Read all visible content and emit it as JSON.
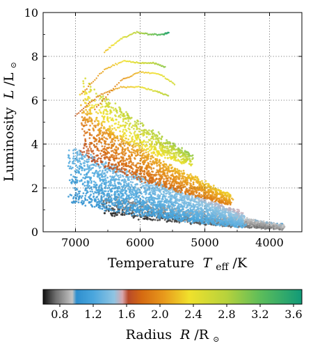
{
  "chart_data": {
    "type": "scatter",
    "title": "",
    "xlabel": "Temperature",
    "xlabel_symbol": "T",
    "xlabel_sub": "eff",
    "xlabel_unit": "/K",
    "ylabel": "Luminosity",
    "ylabel_symbol": "L",
    "ylabel_unit": "/L",
    "ylabel_sun": "⊙",
    "x_axis_inverted": true,
    "xlim": [
      7500,
      3500
    ],
    "ylim": [
      0,
      10
    ],
    "xticks": [
      7000,
      6000,
      5000,
      4000
    ],
    "xtick_labels": [
      "7000",
      "6000",
      "5000",
      "4000"
    ],
    "yticks": [
      0,
      2,
      4,
      6,
      8,
      10
    ],
    "ytick_labels": [
      "0",
      "2",
      "4",
      "6",
      "8",
      "10"
    ],
    "grid": true,
    "grid_style": "dotted",
    "color_encoding": "radius",
    "colorbar": {
      "label": "Radius",
      "label_symbol": "R",
      "label_unit": "/R",
      "label_sun": "⊙",
      "range": [
        0.6,
        3.7
      ],
      "ticks": [
        0.8,
        1.2,
        1.6,
        2.0,
        2.4,
        2.8,
        3.2,
        3.6
      ],
      "tick_labels": [
        "0.8",
        "1.2",
        "1.6",
        "2.0",
        "2.4",
        "2.8",
        "3.2",
        "3.6"
      ],
      "colormap": [
        {
          "r": 0.6,
          "color": "#111111"
        },
        {
          "r": 0.75,
          "color": "#6e6e6e"
        },
        {
          "r": 0.95,
          "color": "#c4c4c4"
        },
        {
          "r": 1.0,
          "color": "#2f8fce"
        },
        {
          "r": 1.2,
          "color": "#4aa6dd"
        },
        {
          "r": 1.45,
          "color": "#8fc4e2"
        },
        {
          "r": 1.55,
          "color": "#d8a7ad"
        },
        {
          "r": 1.62,
          "color": "#b84a2a"
        },
        {
          "r": 1.78,
          "color": "#d56a12"
        },
        {
          "r": 2.05,
          "color": "#e89a1c"
        },
        {
          "r": 2.35,
          "color": "#f0e12c"
        },
        {
          "r": 2.8,
          "color": "#b6d23c"
        },
        {
          "r": 3.2,
          "color": "#5dbd5a"
        },
        {
          "r": 3.7,
          "color": "#119a78"
        }
      ]
    },
    "point_cloud": {
      "description_bands": [
        {
          "name": "lower-main-sequence",
          "t_hot": 6600,
          "t_cool": 3800,
          "l_low_hot": 0.8,
          "l_low_cool": 0.1,
          "thickness": 1.0,
          "r_min": 0.6,
          "r_max": 1.0
        },
        {
          "name": "main-sequence",
          "t_hot": 7100,
          "t_cool": 4400,
          "l_low_hot": 1.4,
          "l_low_cool": 0.2,
          "thickness": 2.6,
          "r_min": 1.0,
          "r_max": 1.55
        },
        {
          "name": "subgiant",
          "t_hot": 6900,
          "t_cool": 4600,
          "l_low_hot": 3.6,
          "l_low_cool": 1.2,
          "thickness": 2.0,
          "r_min": 1.6,
          "r_max": 2.3
        },
        {
          "name": "evolved-tracks",
          "t_hot": 6900,
          "t_cool": 5200,
          "l_low_hot": 5.2,
          "l_low_cool": 3.0,
          "thickness": 2.0,
          "r_min": 2.0,
          "r_max": 3.0
        }
      ],
      "tracks": [
        {
          "t": [
            6550,
            6300,
            6050,
            5850,
            5650,
            5550
          ],
          "l": [
            8.2,
            8.8,
            9.1,
            9.0,
            9.0,
            9.1
          ],
          "r_start": 2.2,
          "r_end": 3.6
        },
        {
          "t": [
            6900,
            6550,
            6250,
            6000,
            5800,
            5600
          ],
          "l": [
            6.3,
            7.4,
            7.8,
            7.7,
            7.7,
            7.5
          ],
          "r_start": 1.9,
          "r_end": 3.0
        },
        {
          "t": [
            7000,
            6650,
            6300,
            6000,
            5750,
            5550
          ],
          "l": [
            5.3,
            6.2,
            6.6,
            6.6,
            6.4,
            6.2
          ],
          "r_start": 1.7,
          "r_end": 2.8
        },
        {
          "t": [
            6700,
            6300,
            6000,
            5700,
            5450
          ],
          "l": [
            5.6,
            6.9,
            7.3,
            7.2,
            6.7
          ],
          "r_start": 1.8,
          "r_end": 2.6
        }
      ]
    }
  }
}
